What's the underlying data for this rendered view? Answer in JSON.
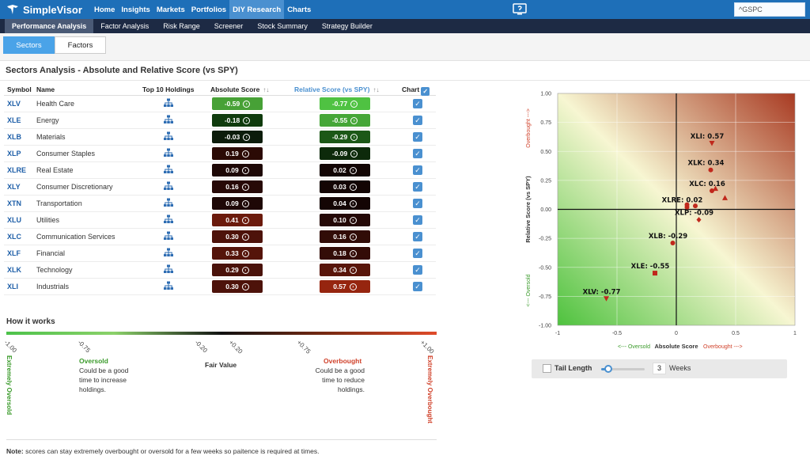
{
  "app": {
    "name": "SimpleVisor"
  },
  "nav": {
    "items": [
      "Home",
      "Insights",
      "Markets",
      "Portfolios",
      "DIY Research",
      "Charts"
    ],
    "active": "DIY Research",
    "search_value": "^GSPC"
  },
  "subnav": {
    "items": [
      "Performance Analysis",
      "Factor Analysis",
      "Risk Range",
      "Screener",
      "Stock Summary",
      "Strategy Builder"
    ],
    "active": "Performance Analysis"
  },
  "toggle": {
    "sectors": "Sectors",
    "factors": "Factors",
    "active": "Sectors"
  },
  "panel": {
    "title": "Sectors Analysis - Absolute and Relative Score (vs SPY)"
  },
  "table": {
    "headers": {
      "symbol": "Symbol",
      "name": "Name",
      "holdings": "Top 10 Holdings",
      "absolute": "Absolute Score",
      "relative": "Relative Score (vs SPY)",
      "chart": "Chart"
    },
    "rows": [
      {
        "symbol": "XLV",
        "name": "Health Care",
        "abs": "-0.59",
        "rel": "-0.77",
        "abs_color": "#47a136",
        "rel_color": "#4fc242",
        "chart": true
      },
      {
        "symbol": "XLE",
        "name": "Energy",
        "abs": "-0.18",
        "rel": "-0.55",
        "abs_color": "#0f3b0d",
        "rel_color": "#45a637",
        "chart": true
      },
      {
        "symbol": "XLB",
        "name": "Materials",
        "abs": "-0.03",
        "rel": "-0.29",
        "abs_color": "#0c1c0b",
        "rel_color": "#1c5817",
        "chart": true
      },
      {
        "symbol": "XLP",
        "name": "Consumer Staples",
        "abs": "0.19",
        "rel": "-0.09",
        "abs_color": "#2b0a05",
        "rel_color": "#0d2a0b",
        "chart": true
      },
      {
        "symbol": "XLRE",
        "name": "Real Estate",
        "abs": "0.09",
        "rel": "0.02",
        "abs_color": "#1e0806",
        "rel_color": "#120504",
        "chart": true
      },
      {
        "symbol": "XLY",
        "name": "Consumer Discretionary",
        "abs": "0.16",
        "rel": "0.03",
        "abs_color": "#270907",
        "rel_color": "#130504",
        "chart": true
      },
      {
        "symbol": "XTN",
        "name": "Transportation",
        "abs": "0.09",
        "rel": "0.04",
        "abs_color": "#1e0806",
        "rel_color": "#140504",
        "chart": true
      },
      {
        "symbol": "XLU",
        "name": "Utilities",
        "abs": "0.41",
        "rel": "0.10",
        "abs_color": "#6b1a0c",
        "rel_color": "#240806",
        "chart": true
      },
      {
        "symbol": "XLC",
        "name": "Communication Services",
        "abs": "0.30",
        "rel": "0.16",
        "abs_color": "#4d120a",
        "rel_color": "#310c07",
        "chart": true
      },
      {
        "symbol": "XLF",
        "name": "Financial",
        "abs": "0.33",
        "rel": "0.18",
        "abs_color": "#55140a",
        "rel_color": "#330c07",
        "chart": true
      },
      {
        "symbol": "XLK",
        "name": "Technology",
        "abs": "0.29",
        "rel": "0.34",
        "abs_color": "#4a120a",
        "rel_color": "#58150a",
        "chart": true
      },
      {
        "symbol": "XLI",
        "name": "Industrials",
        "abs": "0.30",
        "rel": "0.57",
        "abs_color": "#4d120a",
        "rel_color": "#96250f",
        "chart": true
      }
    ]
  },
  "how": {
    "title": "How it works",
    "ticks": [
      "-1.00",
      "-0.75",
      "-0.20",
      "+0.20",
      "+0.75",
      "+1.00"
    ],
    "extremely_oversold": "Extremely Oversold",
    "extremely_overbought": "Extremely Overbought",
    "oversold_title": "Oversold",
    "oversold_desc": [
      "Could be a good",
      "time to increase",
      "holdings."
    ],
    "fair_value": "Fair Value",
    "overbought_title": "Overbought",
    "overbought_desc": [
      "Could be a good",
      "time to reduce",
      "holdings."
    ],
    "note_bold": "Note:",
    "note_text": " scores can stay extremely overbought or oversold for a few weeks so paitence is required at times.",
    "colors": {
      "green": "#3a9a2a",
      "red": "#d0412a"
    }
  },
  "chart_data": {
    "type": "scatter",
    "xlabel": "Absolute Score",
    "ylabel": "Relative Score (vs SPY)",
    "x_left_annotation": "<--- Oversold",
    "x_right_annotation": "Overbought --->",
    "y_top_annotation": "Overbought --->",
    "y_bottom_annotation": "<--- Oversold",
    "xlim": [
      -1,
      1
    ],
    "ylim": [
      -1,
      1
    ],
    "x_ticks": [
      "-1",
      "-0.5",
      "0",
      "0.5",
      "1"
    ],
    "y_ticks": [
      "1.00",
      "0.75",
      "0.50",
      "0.25",
      "0.00",
      "-0.25",
      "-0.50",
      "-0.75",
      "-1.00"
    ],
    "labels": [
      {
        "text": "XLI: 0.57",
        "x": 0.3,
        "y": 0.57
      },
      {
        "text": "XLK: 0.34",
        "x": 0.29,
        "y": 0.34
      },
      {
        "text": "XLC: 0.16",
        "x": 0.3,
        "y": 0.16
      },
      {
        "text": "XLRE: 0.02",
        "x": 0.09,
        "y": 0.02
      },
      {
        "text": "XLP: -0.09",
        "x": 0.19,
        "y": -0.09
      },
      {
        "text": "XLB: -0.29",
        "x": -0.03,
        "y": -0.29
      },
      {
        "text": "XLE: -0.55",
        "x": -0.18,
        "y": -0.55
      },
      {
        "text": "XLV: -0.77",
        "x": -0.59,
        "y": -0.77
      }
    ],
    "points": [
      {
        "x": -0.59,
        "y": -0.77,
        "marker": "triangle-down"
      },
      {
        "x": -0.18,
        "y": -0.55,
        "marker": "square"
      },
      {
        "x": -0.03,
        "y": -0.29,
        "marker": "circle"
      },
      {
        "x": 0.19,
        "y": -0.09,
        "marker": "diamond"
      },
      {
        "x": 0.09,
        "y": 0.02,
        "marker": "circle"
      },
      {
        "x": 0.16,
        "y": 0.03,
        "marker": "circle"
      },
      {
        "x": 0.09,
        "y": 0.04,
        "marker": "circle"
      },
      {
        "x": 0.41,
        "y": 0.1,
        "marker": "triangle-up"
      },
      {
        "x": 0.3,
        "y": 0.16,
        "marker": "circle"
      },
      {
        "x": 0.33,
        "y": 0.18,
        "marker": "triangle-up"
      },
      {
        "x": 0.29,
        "y": 0.34,
        "marker": "circle"
      },
      {
        "x": 0.3,
        "y": 0.57,
        "marker": "triangle-down"
      }
    ],
    "marker_color": "#c0281c",
    "grid": true
  },
  "tail": {
    "label": "Tail Length",
    "weeks_value": "3",
    "weeks_label": "Weeks",
    "slider_level": 0.1
  }
}
